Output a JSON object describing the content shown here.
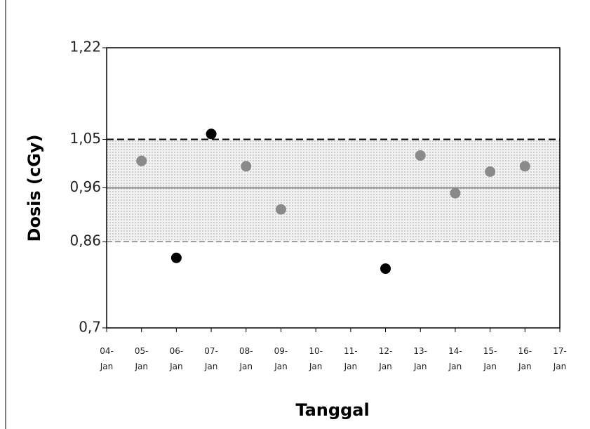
{
  "chart_data": {
    "type": "scatter",
    "x_label": "Tanggal",
    "y_label": "Dosis (cGy)",
    "categories": [
      "04-Jan",
      "05-Jan",
      "06-Jan",
      "07-Jan",
      "08-Jan",
      "09-Jan",
      "10-Jan",
      "11-Jan",
      "12-Jan",
      "13-Jan",
      "14-Jan",
      "15-Jan",
      "16-Jan",
      "17-Jan"
    ],
    "series": [
      {
        "color": "#8a8a8a",
        "values": [
          null,
          1.01,
          null,
          null,
          1.0,
          0.92,
          null,
          null,
          null,
          1.02,
          0.95,
          0.99,
          1.0,
          null
        ]
      },
      {
        "color": "#000000",
        "values": [
          null,
          null,
          0.83,
          1.06,
          null,
          null,
          null,
          null,
          0.81,
          null,
          null,
          null,
          null,
          null
        ]
      }
    ],
    "limits": {
      "upper": 1.05,
      "center": 0.96,
      "lower": 0.86
    },
    "ylim": [
      0.7,
      1.22
    ],
    "yticks": [
      {
        "value": 0.7,
        "label": "0,7"
      },
      {
        "value": 0.86,
        "label": "0,86"
      },
      {
        "value": 0.96,
        "label": "0,96"
      },
      {
        "value": 1.05,
        "label": "1,05"
      },
      {
        "value": 1.22,
        "label": "1,22"
      }
    ]
  }
}
